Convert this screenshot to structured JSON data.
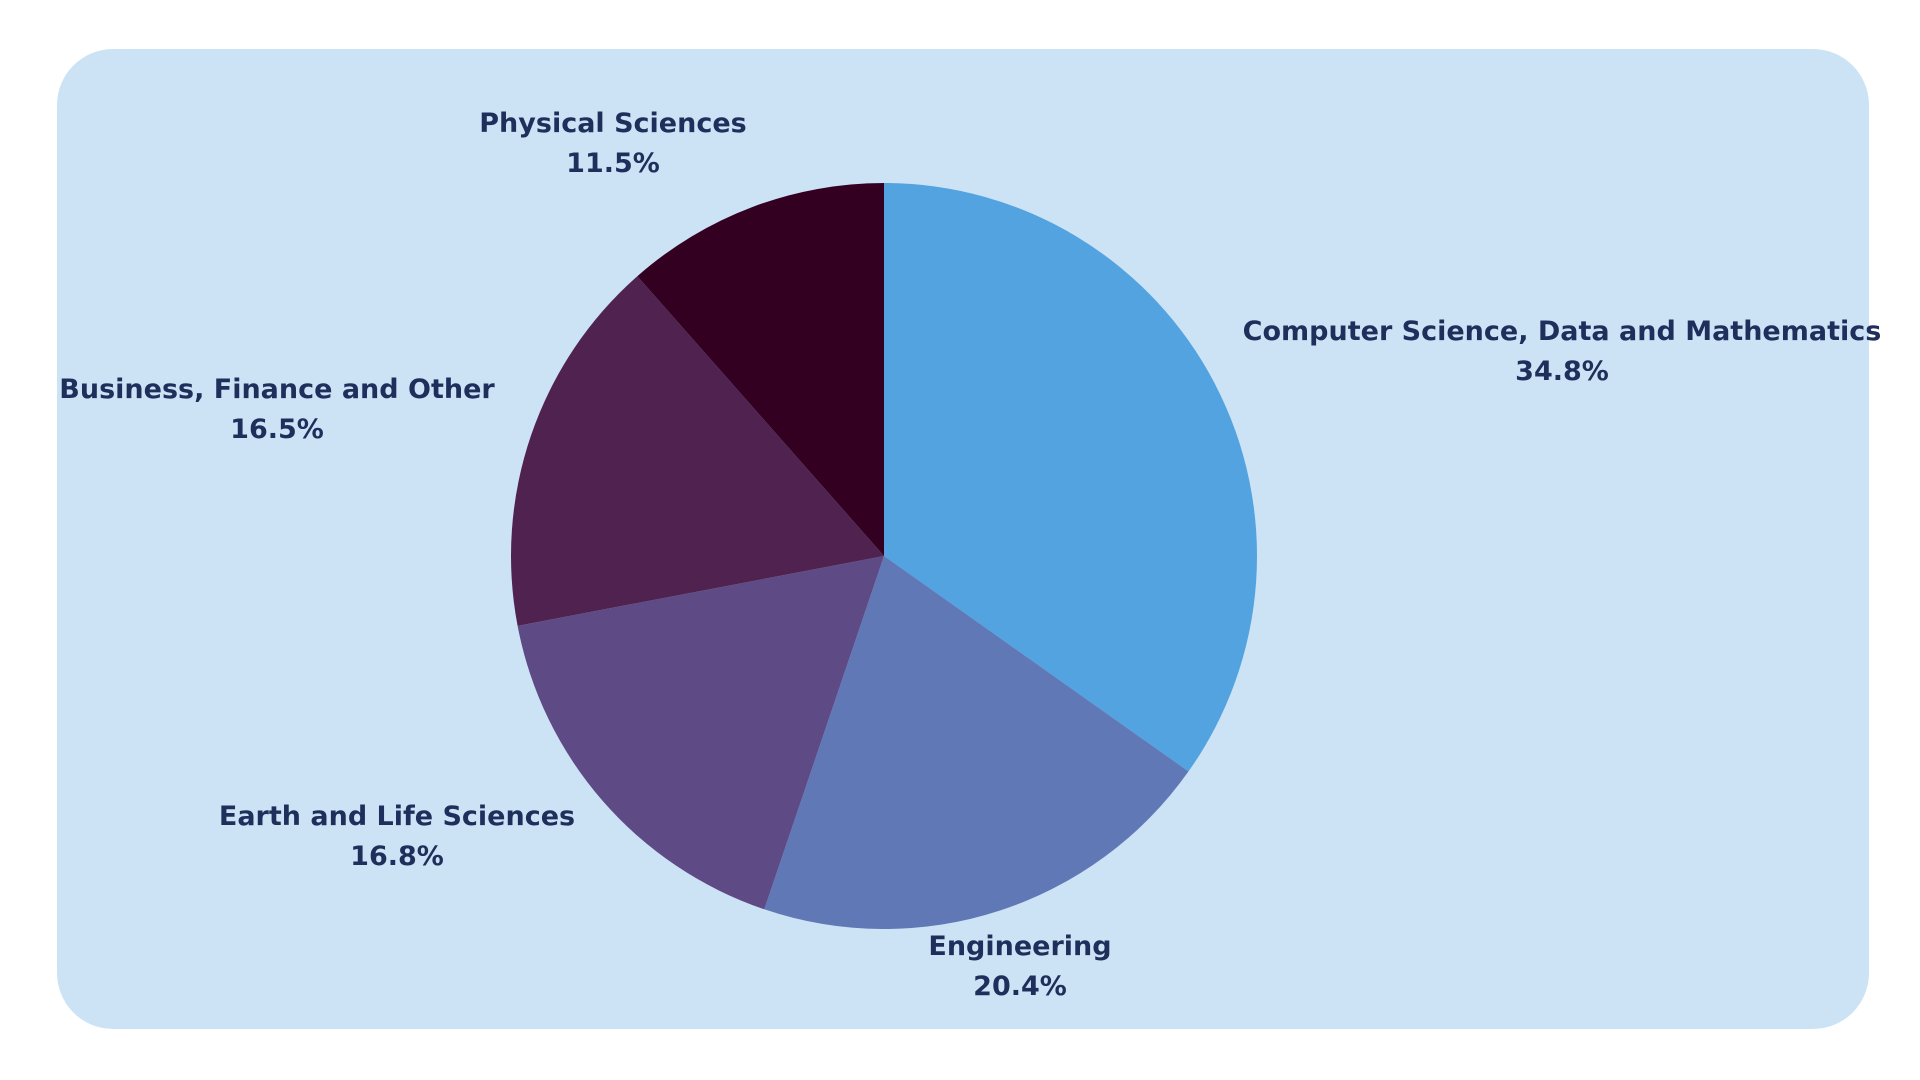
{
  "chart_data": {
    "type": "pie",
    "start_angle": "top",
    "direction": "clockwise",
    "slices": [
      {
        "label": "Computer Science, Data and Mathematics",
        "value": 34.8,
        "value_text": "34.8%",
        "color": "#52a3e0"
      },
      {
        "label": "Engineering",
        "value": 20.4,
        "value_text": "20.4%",
        "color": "#6078b6"
      },
      {
        "label": "Earth and Life Sciences",
        "value": 16.8,
        "value_text": "16.8%",
        "color": "#5e4a84"
      },
      {
        "label": "Business, Finance and Other",
        "value": 16.5,
        "value_text": "16.5%",
        "color": "#4f2250"
      },
      {
        "label": "Physical Sciences",
        "value": 11.5,
        "value_text": "11.5%",
        "color": "#340022"
      }
    ],
    "background_color": "#cce3f5",
    "label_color": "#1f2f5c"
  }
}
